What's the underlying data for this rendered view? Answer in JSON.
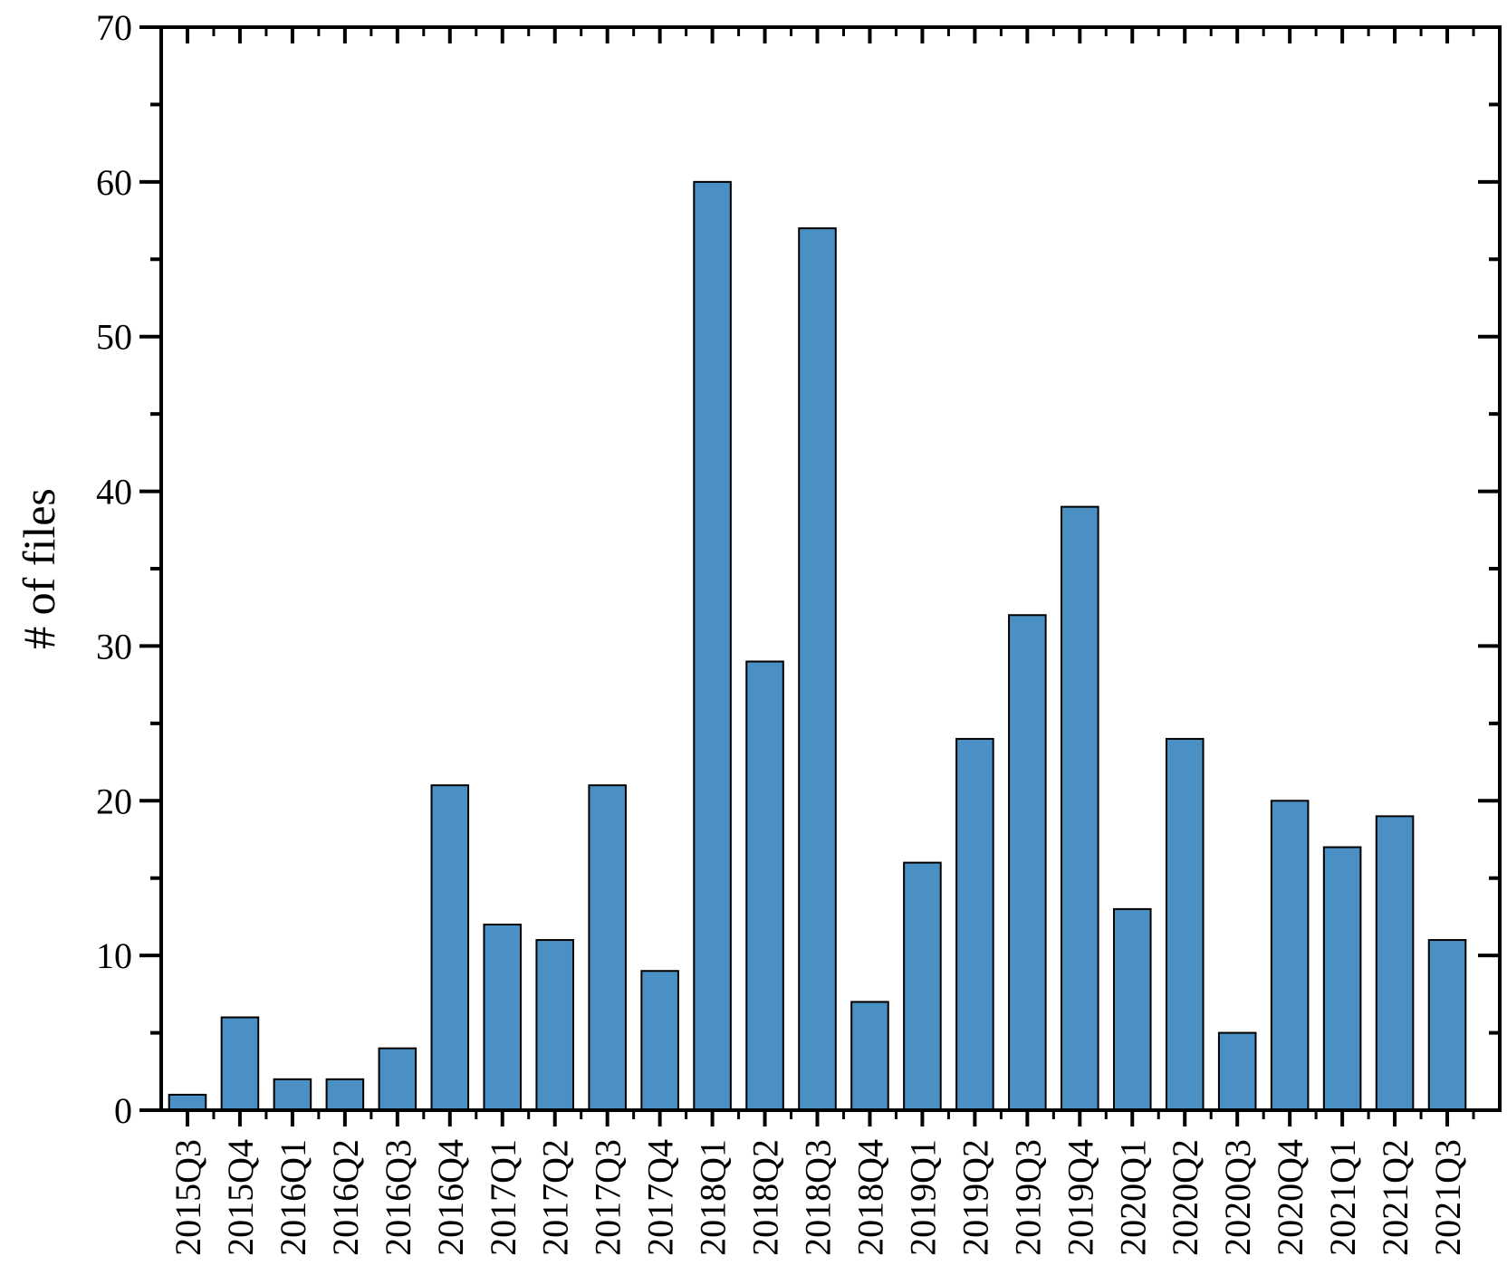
{
  "chart_data": {
    "type": "bar",
    "title": "",
    "xlabel": "",
    "ylabel": "# of files",
    "ylim": [
      0,
      70
    ],
    "ytick_step": 10,
    "yminor_step": 5,
    "grid": false,
    "bar_color": "#4a90c4",
    "bar_edge_color": "#000000",
    "categories": [
      "2015Q3",
      "2015Q4",
      "2016Q1",
      "2016Q2",
      "2016Q3",
      "2016Q4",
      "2017Q1",
      "2017Q2",
      "2017Q3",
      "2017Q4",
      "2018Q1",
      "2018Q2",
      "2018Q3",
      "2018Q4",
      "2019Q1",
      "2019Q2",
      "2019Q3",
      "2019Q4",
      "2020Q1",
      "2020Q2",
      "2020Q3",
      "2020Q4",
      "2021Q1",
      "2021Q2",
      "2021Q3"
    ],
    "values": [
      1,
      6,
      2,
      2,
      4,
      21,
      12,
      11,
      21,
      9,
      60,
      29,
      57,
      7,
      16,
      24,
      32,
      39,
      13,
      24,
      5,
      20,
      17,
      19,
      11
    ]
  }
}
